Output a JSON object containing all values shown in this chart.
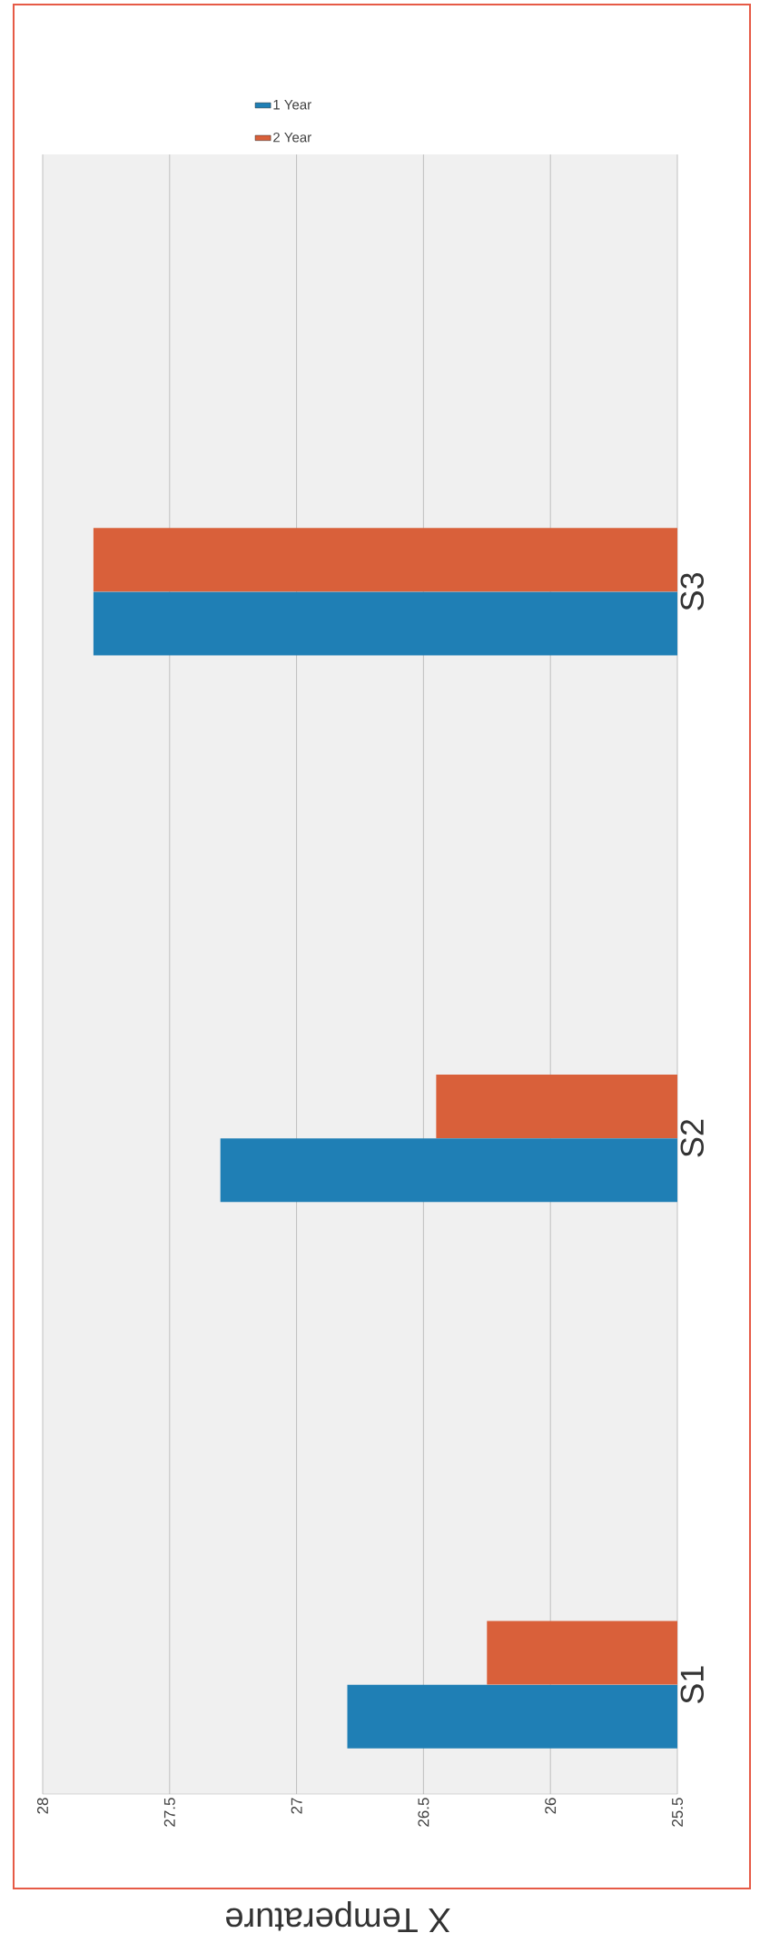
{
  "chart_data": {
    "type": "bar",
    "orientation": "horizontal",
    "xlabel": "X Temperature",
    "categories": [
      "S3",
      "S2",
      "S1"
    ],
    "series": [
      {
        "name": "1 Year",
        "color": "#1f7fb5",
        "values": [
          27.8,
          27.3,
          26.8
        ]
      },
      {
        "name": "2 Year",
        "color": "#d9603a",
        "values": [
          27.8,
          26.45,
          26.25
        ]
      }
    ],
    "xlim": [
      28,
      25.5
    ],
    "xticks": [
      28,
      27.5,
      27,
      26.5,
      26,
      25.5
    ],
    "grid": "x",
    "legend": "top"
  }
}
